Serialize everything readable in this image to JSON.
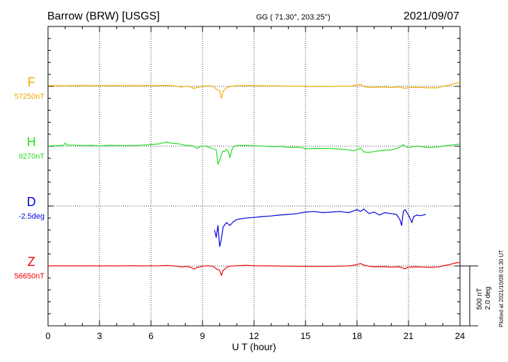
{
  "header": {
    "station": "Barrow (BRW)  [USGS]",
    "coords": "GG ( 71.30°, 203.25°)",
    "date": "2021/09/07"
  },
  "footnote": "Plotted at 2021/10/08 01:30 UT",
  "colors": {
    "F": "#f2a900",
    "H": "#22dd22",
    "D": "#0000dd",
    "Z": "#ee0000"
  },
  "chart_data": {
    "type": "line",
    "title": "Barrow (BRW)  [USGS]",
    "xlabel": "U T (hour)",
    "xlim": [
      0,
      24
    ],
    "xticks": [
      0,
      3,
      6,
      9,
      12,
      15,
      18,
      21,
      24
    ],
    "grid": true,
    "scale_bar": {
      "label1": "500 nT",
      "label2": "2.0 deg"
    },
    "series": [
      {
        "name": "F",
        "baseline_label": "57250nT",
        "unit": "nT",
        "baseline": 57250,
        "points": [
          [
            0,
            57255
          ],
          [
            0.5,
            57256
          ],
          [
            1,
            57254
          ],
          [
            1.5,
            57256
          ],
          [
            2,
            57257
          ],
          [
            2.5,
            57255
          ],
          [
            3,
            57256
          ],
          [
            3.5,
            57256
          ],
          [
            4,
            57257
          ],
          [
            4.5,
            57255
          ],
          [
            5,
            57256
          ],
          [
            5.5,
            57255
          ],
          [
            6,
            57257
          ],
          [
            6.5,
            57256
          ],
          [
            7,
            57258
          ],
          [
            7.5,
            57252
          ],
          [
            7.8,
            57244
          ],
          [
            8,
            57252
          ],
          [
            8.3,
            57246
          ],
          [
            8.5,
            57232
          ],
          [
            8.7,
            57242
          ],
          [
            9,
            57250
          ],
          [
            9.3,
            57254
          ],
          [
            9.6,
            57252
          ],
          [
            9.8,
            57226
          ],
          [
            10,
            57210
          ],
          [
            10.1,
            57150
          ],
          [
            10.2,
            57210
          ],
          [
            10.4,
            57238
          ],
          [
            10.6,
            57248
          ],
          [
            11,
            57255
          ],
          [
            11.5,
            57257
          ],
          [
            12,
            57256
          ],
          [
            13,
            57254
          ],
          [
            14,
            57252
          ],
          [
            15,
            57250
          ],
          [
            16,
            57248
          ],
          [
            17,
            57250
          ],
          [
            17.6,
            57252
          ],
          [
            17.9,
            57258
          ],
          [
            18.2,
            57265
          ],
          [
            18.5,
            57245
          ],
          [
            19,
            57240
          ],
          [
            19.5,
            57245
          ],
          [
            20,
            57240
          ],
          [
            20.5,
            57245
          ],
          [
            20.8,
            57232
          ],
          [
            21,
            57240
          ],
          [
            21.4,
            57242
          ],
          [
            21.8,
            57240
          ],
          [
            22.2,
            57238
          ],
          [
            22.7,
            57238
          ],
          [
            23,
            57250
          ],
          [
            23.4,
            57260
          ],
          [
            23.8,
            57278
          ],
          [
            24,
            57282
          ]
        ]
      },
      {
        "name": "H",
        "baseline_label": "9270nT",
        "unit": "nT",
        "baseline": 9270,
        "points": [
          [
            0,
            9272
          ],
          [
            0.5,
            9275
          ],
          [
            0.9,
            9278
          ],
          [
            1,
            9295
          ],
          [
            1.1,
            9280
          ],
          [
            1.5,
            9280
          ],
          [
            2,
            9275
          ],
          [
            2.5,
            9278
          ],
          [
            3,
            9272
          ],
          [
            3.5,
            9278
          ],
          [
            4,
            9277
          ],
          [
            4.5,
            9275
          ],
          [
            5,
            9275
          ],
          [
            5.5,
            9280
          ],
          [
            6,
            9284
          ],
          [
            6.5,
            9290
          ],
          [
            6.9,
            9305
          ],
          [
            7.2,
            9294
          ],
          [
            7.6,
            9290
          ],
          [
            7.9,
            9280
          ],
          [
            8.2,
            9275
          ],
          [
            8.5,
            9270
          ],
          [
            8.7,
            9250
          ],
          [
            8.9,
            9272
          ],
          [
            9.2,
            9270
          ],
          [
            9.5,
            9255
          ],
          [
            9.8,
            9240
          ],
          [
            9.9,
            9120
          ],
          [
            10,
            9150
          ],
          [
            10.1,
            9200
          ],
          [
            10.2,
            9230
          ],
          [
            10.3,
            9225
          ],
          [
            10.4,
            9245
          ],
          [
            10.5,
            9225
          ],
          [
            10.6,
            9175
          ],
          [
            10.7,
            9235
          ],
          [
            10.8,
            9265
          ],
          [
            11,
            9275
          ],
          [
            11.5,
            9278
          ],
          [
            12,
            9274
          ],
          [
            12.5,
            9270
          ],
          [
            13,
            9266
          ],
          [
            13.5,
            9268
          ],
          [
            14,
            9260
          ],
          [
            14.5,
            9262
          ],
          [
            14.8,
            9258
          ],
          [
            15,
            9248
          ],
          [
            15.5,
            9250
          ],
          [
            16,
            9250
          ],
          [
            16.5,
            9250
          ],
          [
            17,
            9246
          ],
          [
            17.5,
            9240
          ],
          [
            17.8,
            9232
          ],
          [
            18,
            9240
          ],
          [
            18.2,
            9255
          ],
          [
            18.4,
            9222
          ],
          [
            18.7,
            9218
          ],
          [
            19,
            9225
          ],
          [
            19.5,
            9235
          ],
          [
            20,
            9240
          ],
          [
            20.3,
            9250
          ],
          [
            20.5,
            9262
          ],
          [
            20.7,
            9282
          ],
          [
            20.9,
            9262
          ],
          [
            21,
            9256
          ],
          [
            21.3,
            9270
          ],
          [
            21.6,
            9268
          ],
          [
            22,
            9262
          ],
          [
            22.5,
            9260
          ],
          [
            23,
            9270
          ],
          [
            23.5,
            9280
          ],
          [
            24,
            9288
          ]
        ]
      },
      {
        "name": "D",
        "baseline_label": "-2.5deg",
        "unit": "deg",
        "baseline": -2.5,
        "points": [
          [
            9.7,
            -3.3
          ],
          [
            9.8,
            -3.55
          ],
          [
            9.9,
            -3.15
          ],
          [
            10,
            -3.85
          ],
          [
            10.1,
            -3.6
          ],
          [
            10.2,
            -3.2
          ],
          [
            10.4,
            -3.05
          ],
          [
            10.6,
            -3.15
          ],
          [
            10.8,
            -3.02
          ],
          [
            11,
            -2.95
          ],
          [
            11.5,
            -2.9
          ],
          [
            12,
            -2.88
          ],
          [
            12.5,
            -2.85
          ],
          [
            13,
            -2.83
          ],
          [
            13.5,
            -2.8
          ],
          [
            14,
            -2.78
          ],
          [
            14.5,
            -2.75
          ],
          [
            15,
            -2.7
          ],
          [
            15.5,
            -2.68
          ],
          [
            16,
            -2.72
          ],
          [
            16.5,
            -2.7
          ],
          [
            17,
            -2.68
          ],
          [
            17.5,
            -2.72
          ],
          [
            18,
            -2.62
          ],
          [
            18.2,
            -2.68
          ],
          [
            18.4,
            -2.6
          ],
          [
            18.7,
            -2.75
          ],
          [
            19,
            -2.7
          ],
          [
            19.3,
            -2.8
          ],
          [
            19.6,
            -2.72
          ],
          [
            20,
            -2.75
          ],
          [
            20.3,
            -2.78
          ],
          [
            20.5,
            -2.95
          ],
          [
            20.6,
            -3.15
          ],
          [
            20.7,
            -2.68
          ],
          [
            20.8,
            -2.62
          ],
          [
            21,
            -2.8
          ],
          [
            21.2,
            -3.05
          ],
          [
            21.3,
            -2.85
          ],
          [
            21.5,
            -2.8
          ],
          [
            21.7,
            -2.82
          ],
          [
            22,
            -2.78
          ]
        ]
      },
      {
        "name": "Z",
        "baseline_label": "56650nT",
        "unit": "nT",
        "baseline": 56650,
        "points": [
          [
            0,
            56650
          ],
          [
            0.5,
            56652
          ],
          [
            1,
            56650
          ],
          [
            1.5,
            56651
          ],
          [
            2,
            56650
          ],
          [
            2.5,
            56652
          ],
          [
            3,
            56650
          ],
          [
            3.5,
            56651
          ],
          [
            4,
            56650
          ],
          [
            4.5,
            56651
          ],
          [
            5,
            56652
          ],
          [
            5.5,
            56650
          ],
          [
            6,
            56651
          ],
          [
            6.5,
            56652
          ],
          [
            7,
            56654
          ],
          [
            7.5,
            56648
          ],
          [
            7.8,
            56640
          ],
          [
            8,
            56646
          ],
          [
            8.3,
            56640
          ],
          [
            8.5,
            56624
          ],
          [
            8.7,
            56638
          ],
          [
            9,
            56648
          ],
          [
            9.3,
            56652
          ],
          [
            9.6,
            56648
          ],
          [
            9.8,
            56626
          ],
          [
            10,
            56612
          ],
          [
            10.1,
            56570
          ],
          [
            10.2,
            56612
          ],
          [
            10.4,
            56638
          ],
          [
            10.6,
            56648
          ],
          [
            11,
            56652
          ],
          [
            11.5,
            56655
          ],
          [
            12,
            56652
          ],
          [
            13,
            56650
          ],
          [
            14,
            56648
          ],
          [
            15,
            56646
          ],
          [
            16,
            56646
          ],
          [
            17,
            56648
          ],
          [
            17.6,
            56652
          ],
          [
            17.9,
            56658
          ],
          [
            18.2,
            56670
          ],
          [
            18.5,
            56652
          ],
          [
            19,
            56642
          ],
          [
            19.5,
            56644
          ],
          [
            20,
            56640
          ],
          [
            20.5,
            56642
          ],
          [
            20.8,
            56626
          ],
          [
            21,
            56640
          ],
          [
            21.4,
            56642
          ],
          [
            21.8,
            56640
          ],
          [
            22.2,
            56638
          ],
          [
            22.7,
            56640
          ],
          [
            23,
            56650
          ],
          [
            23.4,
            56662
          ],
          [
            23.8,
            56676
          ],
          [
            24,
            56680
          ]
        ]
      }
    ]
  }
}
